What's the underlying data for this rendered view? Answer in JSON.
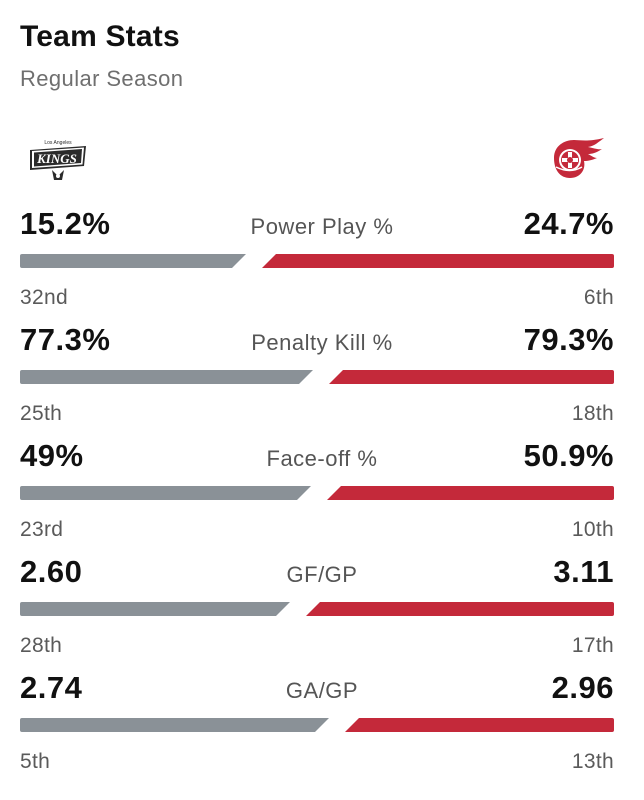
{
  "header": {
    "title": "Team Stats",
    "subtitle": "Regular Season"
  },
  "teams": {
    "left": {
      "logo": "kings-logo",
      "logo_text": "KINGS",
      "logo_small_text": "Los Angeles",
      "bar_color": "#8a9197"
    },
    "right": {
      "logo": "red-wings-logo",
      "bar_color": "#c4293a"
    }
  },
  "stats": [
    {
      "label": "Power Play %",
      "left_value": "15.2%",
      "right_value": "24.7%",
      "left_rank": "32nd",
      "right_rank": "6th",
      "left_share": 0.38
    },
    {
      "label": "Penalty Kill %",
      "left_value": "77.3%",
      "right_value": "79.3%",
      "left_rank": "25th",
      "right_rank": "18th",
      "left_share": 0.494
    },
    {
      "label": "Face-off %",
      "left_value": "49%",
      "right_value": "50.9%",
      "left_rank": "23rd",
      "right_rank": "10th",
      "left_share": 0.49
    },
    {
      "label": "GF/GP",
      "left_value": "2.60",
      "right_value": "3.11",
      "left_rank": "28th",
      "right_rank": "17th",
      "left_share": 0.455
    },
    {
      "label": "GA/GP",
      "left_value": "2.74",
      "right_value": "2.96",
      "left_rank": "5th",
      "right_rank": "13th",
      "left_share": 0.52
    }
  ]
}
